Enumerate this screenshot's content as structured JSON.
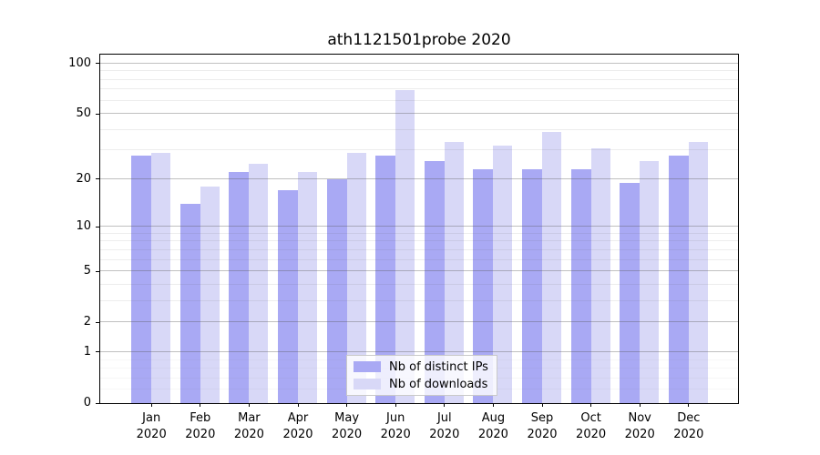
{
  "chart_data": {
    "type": "bar",
    "title": "ath1121501probe 2020",
    "year": "2020",
    "categories": [
      "Jan",
      "Feb",
      "Mar",
      "Apr",
      "May",
      "Jun",
      "Jul",
      "Aug",
      "Sep",
      "Oct",
      "Nov",
      "Dec"
    ],
    "series": [
      {
        "name": "Nb of distinct IPs",
        "color": "#a9a9f4",
        "values": [
          28,
          14,
          22,
          17,
          20,
          28,
          26,
          23,
          23,
          23,
          19,
          28
        ]
      },
      {
        "name": "Nb of downloads",
        "color": "#d8d8f7",
        "values": [
          29,
          18,
          25,
          22,
          29,
          69,
          34,
          32,
          39,
          31,
          26,
          34
        ]
      }
    ],
    "yscale": "log10(1+v)",
    "yticks": [
      0,
      1,
      2,
      5,
      10,
      20,
      50,
      100
    ],
    "minor_gridlines": [
      3,
      4,
      6,
      7,
      8,
      9,
      30,
      40,
      60,
      70,
      80,
      90
    ],
    "sub_gridlines": [
      0.2,
      0.4,
      0.6,
      0.8
    ],
    "ylim": [
      0,
      113
    ],
    "xlabel": "",
    "ylabel": "",
    "grid": true,
    "legend_position": "bottom-center"
  }
}
